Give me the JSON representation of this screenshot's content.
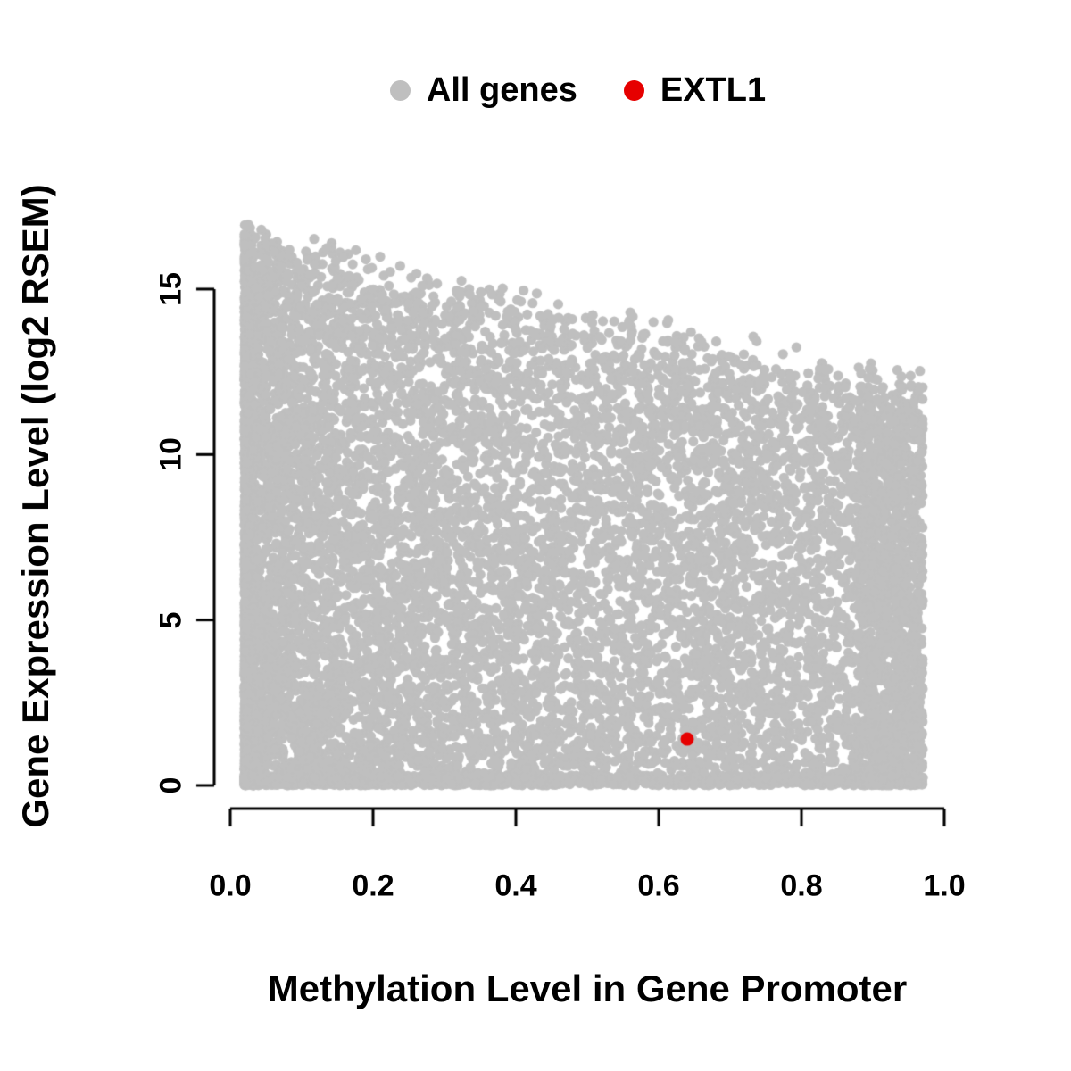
{
  "chart_data": {
    "type": "scatter",
    "title": "",
    "xlabel": "Methylation Level in Gene Promoter",
    "ylabel": "Gene Expression Level (log2 RSEM)",
    "xlim": [
      0.0,
      1.0
    ],
    "ylim": [
      0,
      17
    ],
    "x_ticks": [
      0.0,
      0.2,
      0.4,
      0.6,
      0.8,
      1.0
    ],
    "x_tick_labels": [
      "0.0",
      "0.2",
      "0.4",
      "0.6",
      "0.8",
      "1.0"
    ],
    "y_ticks": [
      0,
      5,
      10,
      15
    ],
    "y_tick_labels": [
      "0",
      "5",
      "10",
      "15"
    ],
    "grid": false,
    "legend_position": "top",
    "series": [
      {
        "name": "All genes",
        "color": "#bfbfbf",
        "marker": "filled-circle",
        "n_points_approx": 12000,
        "x_range": [
          0.02,
          0.97
        ],
        "y_range": [
          0,
          16.7
        ],
        "envelope": {
          "y_max_at_x0": 16.5,
          "y_max_at_x1": 11.6
        },
        "pattern": "dense gray cloud; maximum expression decreases roughly linearly as promoter methylation increases; density highest at low methylation and near zero expression, dense strip along y=0 across full x range, extra cluster near x=0.9-0.97"
      },
      {
        "name": "EXTL1",
        "color": "#e60000",
        "marker": "filled-circle",
        "points": [
          [
            0.64,
            1.4
          ]
        ]
      }
    ]
  }
}
